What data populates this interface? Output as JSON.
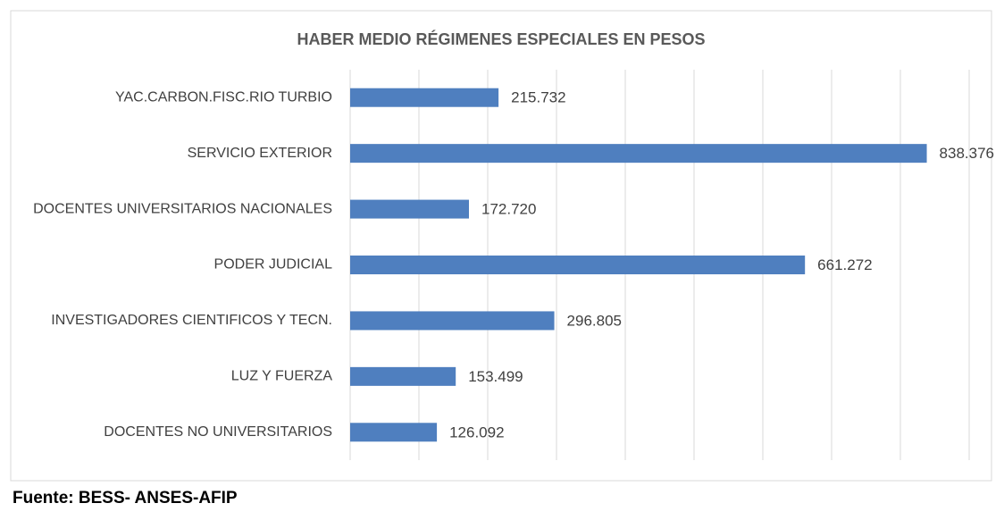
{
  "chart_data": {
    "type": "barh",
    "title": "HABER MEDIO RÉGIMENES ESPECIALES EN PESOS",
    "categories": [
      "YAC.CARBON.FISC.RIO TURBIO",
      "SERVICIO EXTERIOR",
      "DOCENTES UNIVERSITARIOS NACIONALES",
      "PODER JUDICIAL",
      "INVESTIGADORES CIENTIFICOS Y TECN.",
      "LUZ Y FUERZA",
      "DOCENTES NO UNIVERSITARIOS"
    ],
    "values": [
      215732,
      838376,
      172720,
      661272,
      296805,
      153499,
      126092
    ],
    "value_labels": [
      "215.732",
      "838.376",
      "172.720",
      "661.272",
      "296.805",
      "153.499",
      "126.092"
    ],
    "color": "#4f7fbf",
    "xlim": [
      0,
      900000
    ],
    "xticks": [
      0,
      100000,
      200000,
      300000,
      400000,
      500000,
      600000,
      700000,
      800000,
      900000
    ],
    "grid": true
  },
  "source": "Fuente: BESS- ANSES-AFIP"
}
